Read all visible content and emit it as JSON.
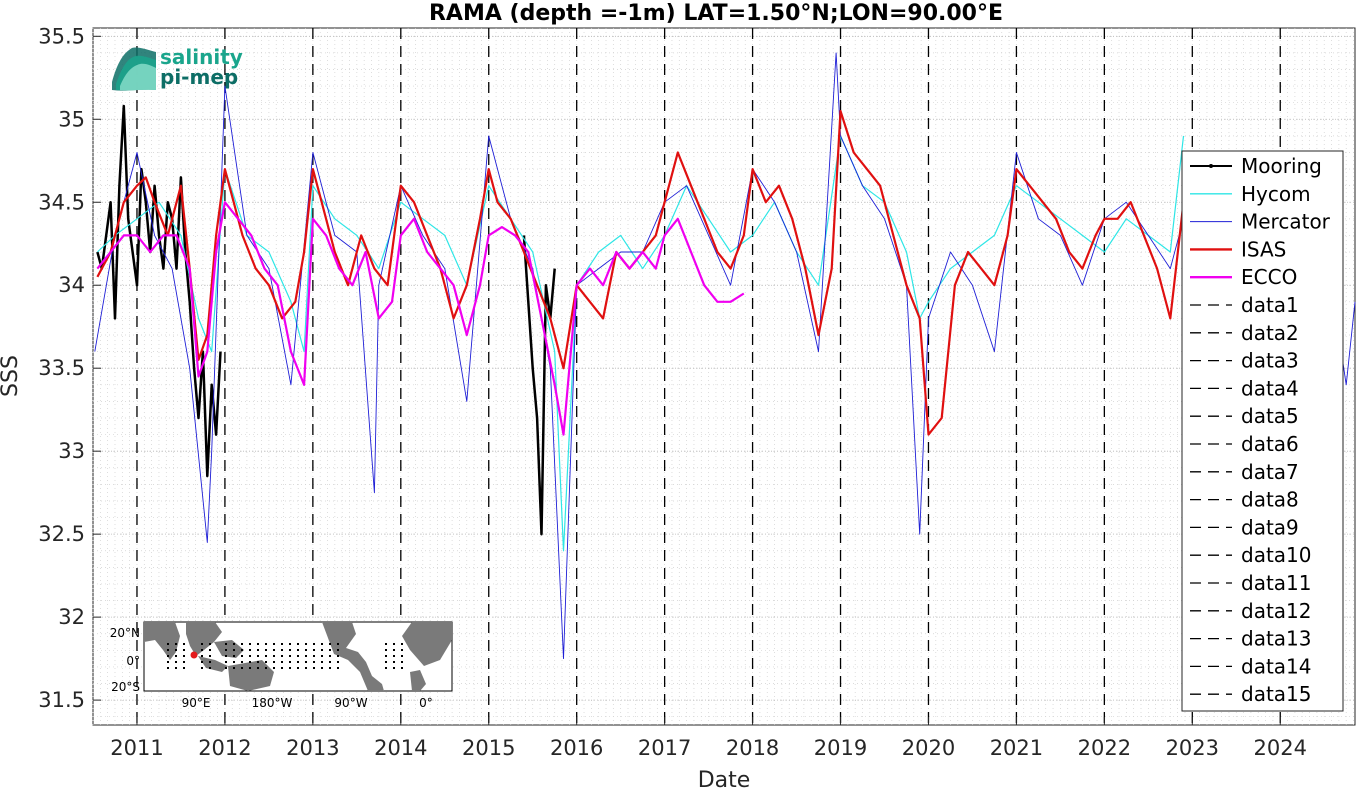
{
  "logo": {
    "line1": "salinity",
    "line2": "pi-mep",
    "color1": "#1aa58c",
    "color2": "#0d6e66"
  },
  "inset_map": {
    "lat_labels": [
      "20°N",
      "0°",
      "20°S"
    ],
    "lon_labels": [
      "90°E",
      "180°W",
      "90°W",
      "0°"
    ],
    "land_color": "#7a7a7a",
    "marker_color": "#e41a1c"
  },
  "chart_data": {
    "type": "line",
    "title": "RAMA (depth =-1m) LAT=1.50°N;LON=90.00°E",
    "xlabel": "Date",
    "ylabel": "SSS",
    "xlim": [
      2010.5,
      2024.85
    ],
    "ylim": [
      31.35,
      35.55
    ],
    "x_ticks": [
      2011,
      2012,
      2013,
      2014,
      2015,
      2016,
      2017,
      2018,
      2019,
      2020,
      2021,
      2022,
      2023,
      2024
    ],
    "x_tick_labels": [
      "2011",
      "2012",
      "2013",
      "2014",
      "2015",
      "2016",
      "2017",
      "2018",
      "2019",
      "2020",
      "2021",
      "2022",
      "2023",
      "2024"
    ],
    "y_ticks": [
      31.5,
      32,
      32.5,
      33,
      33.5,
      34,
      34.5,
      35,
      35.5
    ],
    "y_tick_labels": [
      "31.5",
      "32",
      "32.5",
      "33",
      "33.5",
      "34",
      "34.5",
      "35",
      "35.5"
    ],
    "grid": true,
    "legend_position": "right",
    "year_boundaries": [
      2011,
      2012,
      2013,
      2014,
      2015,
      2016,
      2017,
      2018,
      2019,
      2020,
      2021,
      2022,
      2023,
      2024
    ],
    "series": [
      {
        "name": "Mooring",
        "color": "#000000",
        "x": [
          2010.55,
          2010.6,
          2010.65,
          2010.7,
          2010.75,
          2010.8,
          2010.85,
          2010.9,
          2010.95,
          2011.0,
          2011.05,
          2011.1,
          2011.15,
          2011.2,
          2011.25,
          2011.3,
          2011.35,
          2011.4,
          2011.45,
          2011.5,
          2011.55,
          2011.6,
          2011.65,
          2011.7,
          2011.75,
          2011.8,
          2011.85,
          2011.9,
          2011.95,
          2015.4,
          2015.45,
          2015.5,
          2015.55,
          2015.6,
          2015.65,
          2015.7,
          2015.75
        ],
        "y": [
          34.2,
          34.1,
          34.3,
          34.5,
          33.8,
          34.6,
          35.08,
          34.4,
          34.2,
          34.0,
          34.7,
          34.5,
          34.2,
          34.6,
          34.3,
          34.1,
          34.5,
          34.4,
          34.1,
          34.65,
          34.2,
          33.9,
          33.5,
          33.2,
          33.6,
          32.85,
          33.4,
          33.1,
          33.6,
          34.3,
          33.9,
          33.5,
          33.2,
          32.5,
          34.0,
          33.8,
          34.1
        ]
      },
      {
        "name": "Hycom",
        "color": "#2ee6e6",
        "x": [
          2010.55,
          2010.75,
          2011.0,
          2011.25,
          2011.5,
          2011.7,
          2011.85,
          2012.0,
          2012.25,
          2012.5,
          2012.75,
          2012.9,
          2013.0,
          2013.25,
          2013.5,
          2013.75,
          2014.0,
          2014.25,
          2014.5,
          2014.75,
          2015.0,
          2015.25,
          2015.5,
          2015.75,
          2015.85,
          2016.0,
          2016.25,
          2016.5,
          2016.75,
          2017.0,
          2017.25,
          2017.5,
          2017.75,
          2018.0,
          2018.25,
          2018.5,
          2018.75,
          2019.0,
          2019.25,
          2019.5,
          2019.75,
          2019.9,
          2020.0,
          2020.25,
          2020.5,
          2020.75,
          2021.0,
          2021.25,
          2021.5,
          2021.75,
          2022.0,
          2022.25,
          2022.5,
          2022.75,
          2022.9
        ],
        "y": [
          34.2,
          34.3,
          34.4,
          34.5,
          34.3,
          33.8,
          33.6,
          34.7,
          34.3,
          34.2,
          33.9,
          33.6,
          34.6,
          34.4,
          34.3,
          34.1,
          34.5,
          34.4,
          34.3,
          34.0,
          34.6,
          34.4,
          34.2,
          33.6,
          32.4,
          34.0,
          34.2,
          34.3,
          34.1,
          34.3,
          34.6,
          34.4,
          34.2,
          34.3,
          34.5,
          34.2,
          34.0,
          34.9,
          34.6,
          34.5,
          34.2,
          33.8,
          33.9,
          34.1,
          34.2,
          34.3,
          34.6,
          34.5,
          34.4,
          34.3,
          34.2,
          34.4,
          34.3,
          34.2,
          34.9
        ]
      },
      {
        "name": "Mercator",
        "color": "#1f1fd6",
        "x": [
          2010.52,
          2010.75,
          2011.0,
          2011.2,
          2011.4,
          2011.6,
          2011.8,
          2011.85,
          2012.0,
          2012.25,
          2012.5,
          2012.75,
          2013.0,
          2013.25,
          2013.5,
          2013.7,
          2013.75,
          2014.0,
          2014.25,
          2014.5,
          2014.75,
          2015.0,
          2015.25,
          2015.5,
          2015.7,
          2015.85,
          2016.0,
          2016.25,
          2016.5,
          2016.75,
          2017.0,
          2017.25,
          2017.5,
          2017.75,
          2018.0,
          2018.25,
          2018.5,
          2018.75,
          2018.95,
          2019.0,
          2019.25,
          2019.5,
          2019.75,
          2019.9,
          2020.0,
          2020.25,
          2020.5,
          2020.75,
          2021.0,
          2021.25,
          2021.5,
          2021.75,
          2022.0,
          2022.25,
          2022.5,
          2022.75,
          2023.0,
          2023.25,
          2023.5,
          2023.75,
          2024.0,
          2024.25,
          2024.5,
          2024.75,
          2024.85
        ],
        "y": [
          33.6,
          34.3,
          34.8,
          34.3,
          34.1,
          33.5,
          32.45,
          33.0,
          35.2,
          34.3,
          34.1,
          33.4,
          34.8,
          34.3,
          34.2,
          32.75,
          34.0,
          34.6,
          34.3,
          34.1,
          33.3,
          34.9,
          34.4,
          34.1,
          33.5,
          31.75,
          34.0,
          34.1,
          34.2,
          34.2,
          34.5,
          34.6,
          34.3,
          34.0,
          34.7,
          34.5,
          34.2,
          33.6,
          35.4,
          34.9,
          34.6,
          34.4,
          34.0,
          32.5,
          33.8,
          34.2,
          34.0,
          33.6,
          34.8,
          34.4,
          34.3,
          34.0,
          34.4,
          34.5,
          34.3,
          34.1,
          34.6,
          34.4,
          34.3,
          34.2,
          34.5,
          34.4,
          34.3,
          33.4,
          33.9
        ]
      },
      {
        "name": "ISAS",
        "color": "#e01010",
        "x": [
          2010.55,
          2010.7,
          2010.85,
          2011.0,
          2011.1,
          2011.2,
          2011.35,
          2011.5,
          2011.6,
          2011.7,
          2011.8,
          2011.9,
          2012.0,
          2012.1,
          2012.2,
          2012.35,
          2012.5,
          2012.65,
          2012.8,
          2012.9,
          2013.0,
          2013.1,
          2013.25,
          2013.4,
          2013.55,
          2013.7,
          2013.85,
          2014.0,
          2014.15,
          2014.3,
          2014.45,
          2014.6,
          2014.75,
          2014.9,
          2015.0,
          2015.1,
          2015.25,
          2015.4,
          2015.55,
          2015.7,
          2015.85,
          2016.0,
          2016.15,
          2016.3,
          2016.45,
          2016.6,
          2016.75,
          2016.9,
          2017.0,
          2017.15,
          2017.3,
          2017.45,
          2017.6,
          2017.75,
          2017.9,
          2018.0,
          2018.15,
          2018.3,
          2018.45,
          2018.6,
          2018.75,
          2018.9,
          2019.0,
          2019.15,
          2019.3,
          2019.45,
          2019.6,
          2019.75,
          2019.9,
          2020.0,
          2020.15,
          2020.3,
          2020.45,
          2020.6,
          2020.75,
          2020.9,
          2021.0,
          2021.15,
          2021.3,
          2021.45,
          2021.6,
          2021.75,
          2021.9,
          2022.0,
          2022.15,
          2022.3,
          2022.45,
          2022.6,
          2022.75,
          2022.9
        ],
        "y": [
          34.05,
          34.2,
          34.5,
          34.6,
          34.65,
          34.5,
          34.3,
          34.6,
          34.1,
          33.55,
          33.7,
          34.3,
          34.7,
          34.5,
          34.3,
          34.1,
          34.0,
          33.8,
          33.9,
          34.2,
          34.7,
          34.5,
          34.2,
          34.0,
          34.3,
          34.1,
          34.0,
          34.6,
          34.5,
          34.3,
          34.1,
          33.8,
          34.0,
          34.4,
          34.7,
          34.5,
          34.4,
          34.2,
          34.0,
          33.8,
          33.5,
          34.0,
          33.9,
          33.8,
          34.2,
          34.1,
          34.2,
          34.3,
          34.5,
          34.8,
          34.6,
          34.4,
          34.2,
          34.1,
          34.3,
          34.7,
          34.5,
          34.6,
          34.4,
          34.1,
          33.7,
          34.1,
          35.05,
          34.8,
          34.7,
          34.6,
          34.3,
          34.0,
          33.8,
          33.1,
          33.2,
          34.0,
          34.2,
          34.1,
          34.0,
          34.3,
          34.7,
          34.6,
          34.5,
          34.4,
          34.2,
          34.1,
          34.3,
          34.4,
          34.4,
          34.5,
          34.3,
          34.1,
          33.8,
          34.5
        ]
      },
      {
        "name": "ECCO",
        "color": "#f000f0",
        "x": [
          2010.55,
          2010.7,
          2010.85,
          2011.0,
          2011.15,
          2011.3,
          2011.45,
          2011.6,
          2011.7,
          2011.8,
          2011.9,
          2012.0,
          2012.15,
          2012.3,
          2012.45,
          2012.6,
          2012.75,
          2012.9,
          2013.0,
          2013.15,
          2013.3,
          2013.45,
          2013.6,
          2013.75,
          2013.9,
          2014.0,
          2014.15,
          2014.3,
          2014.45,
          2014.6,
          2014.75,
          2014.9,
          2015.0,
          2015.15,
          2015.3,
          2015.45,
          2015.6,
          2015.75,
          2015.85,
          2016.0,
          2016.15,
          2016.3,
          2016.45,
          2016.6,
          2016.75,
          2016.9,
          2017.0,
          2017.15,
          2017.3,
          2017.45,
          2017.6,
          2017.75,
          2017.9
        ],
        "y": [
          34.1,
          34.2,
          34.3,
          34.3,
          34.2,
          34.3,
          34.3,
          34.1,
          33.45,
          33.6,
          34.2,
          34.5,
          34.4,
          34.3,
          34.1,
          34.0,
          33.6,
          33.4,
          34.4,
          34.3,
          34.1,
          34.0,
          34.2,
          33.8,
          33.9,
          34.3,
          34.4,
          34.2,
          34.1,
          34.0,
          33.7,
          34.0,
          34.3,
          34.35,
          34.3,
          34.2,
          33.8,
          33.4,
          33.1,
          34.0,
          34.1,
          34.0,
          34.2,
          34.1,
          34.2,
          34.1,
          34.3,
          34.4,
          34.2,
          34.0,
          33.9,
          33.9,
          33.95
        ]
      }
    ],
    "legend_entries": [
      {
        "name": "Mooring",
        "color": "#000000",
        "style": "solid-dot"
      },
      {
        "name": "Hycom",
        "color": "#2ee6e6",
        "style": "solid"
      },
      {
        "name": "Mercator",
        "color": "#1f1fd6",
        "style": "solid-thin"
      },
      {
        "name": "ISAS",
        "color": "#e01010",
        "style": "solid-thick"
      },
      {
        "name": "ECCO",
        "color": "#f000f0",
        "style": "solid-thick"
      },
      {
        "name": "data1",
        "color": "#000000",
        "style": "dashed"
      },
      {
        "name": "data2",
        "color": "#000000",
        "style": "dashed"
      },
      {
        "name": "data3",
        "color": "#000000",
        "style": "dashed"
      },
      {
        "name": "data4",
        "color": "#000000",
        "style": "dashed"
      },
      {
        "name": "data5",
        "color": "#000000",
        "style": "dashed"
      },
      {
        "name": "data6",
        "color": "#000000",
        "style": "dashed"
      },
      {
        "name": "data7",
        "color": "#000000",
        "style": "dashed"
      },
      {
        "name": "data8",
        "color": "#000000",
        "style": "dashed"
      },
      {
        "name": "data9",
        "color": "#000000",
        "style": "dashed"
      },
      {
        "name": "data10",
        "color": "#000000",
        "style": "dashed"
      },
      {
        "name": "data11",
        "color": "#000000",
        "style": "dashed"
      },
      {
        "name": "data12",
        "color": "#000000",
        "style": "dashed"
      },
      {
        "name": "data13",
        "color": "#000000",
        "style": "dashed"
      },
      {
        "name": "data14",
        "color": "#000000",
        "style": "dashed"
      },
      {
        "name": "data15",
        "color": "#000000",
        "style": "dashed"
      }
    ]
  }
}
